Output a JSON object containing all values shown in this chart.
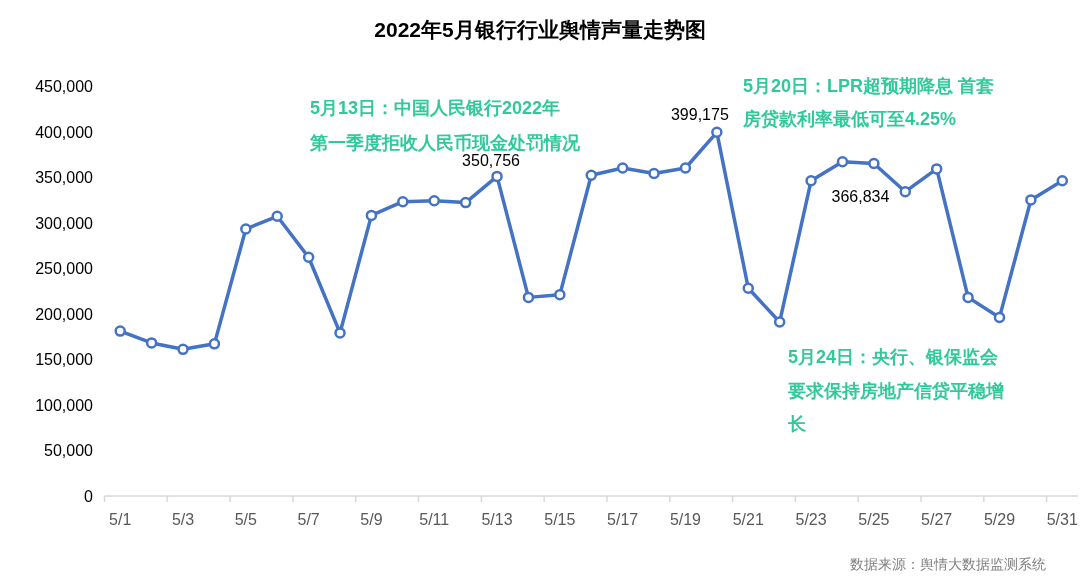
{
  "chart_data": {
    "type": "line",
    "title": "2022年5月银行行业舆情声量走势图",
    "categories": [
      "5/1",
      null,
      "5/3",
      null,
      "5/5",
      null,
      "5/7",
      null,
      "5/9",
      null,
      "5/11",
      null,
      "5/13",
      null,
      "5/15",
      null,
      "5/17",
      null,
      "5/19",
      null,
      "5/21",
      null,
      "5/23",
      null,
      "5/25",
      null,
      "5/27",
      null,
      "5/29",
      null,
      "5/31"
    ],
    "series": [
      {
        "color": "#4472c4",
        "values": [
          181000,
          168000,
          161000,
          167000,
          293000,
          307000,
          262000,
          179000,
          308000,
          323000,
          324000,
          322000,
          350756,
          218000,
          221000,
          352000,
          360000,
          354000,
          360000,
          399175,
          228000,
          191000,
          346000,
          366834,
          365000,
          334000,
          359000,
          218000,
          196000,
          325000,
          346000
        ],
        "value_labels": [
          null,
          null,
          null,
          null,
          null,
          null,
          null,
          null,
          null,
          null,
          null,
          null,
          "350,756",
          null,
          null,
          null,
          null,
          null,
          null,
          "399,175",
          null,
          null,
          null,
          "366,834",
          null,
          null,
          null,
          null,
          null,
          null,
          null
        ]
      }
    ],
    "ylim": [
      0,
      450000
    ],
    "yticks": [
      0,
      {
        "value": 50000,
        "label": "50,000"
      },
      {
        "value": 100000,
        "label": "100,000"
      },
      {
        "value": 150000,
        "label": "150,000"
      },
      {
        "value": 200000,
        "label": "200,000"
      },
      {
        "value": 250000,
        "label": "250,000"
      },
      {
        "value": 300000,
        "label": "300,000"
      },
      {
        "value": 350000,
        "label": "350,000"
      },
      {
        "value": 400000,
        "label": "400,000"
      },
      {
        "value": 450000,
        "label": "450,000"
      }
    ],
    "marker": "circle",
    "line_style": "solid",
    "annotations": [
      "5月13日：中国人民银行2022年第一季度拒收人民币现金处罚情况",
      "5月20日：LPR超预期降息 首套房贷款利率最低可至4.25%",
      "5月24日：央行、银保监会要求保持房地产信贷平稳增长",
      "数据来源：舆情大数据监测系统"
    ]
  }
}
